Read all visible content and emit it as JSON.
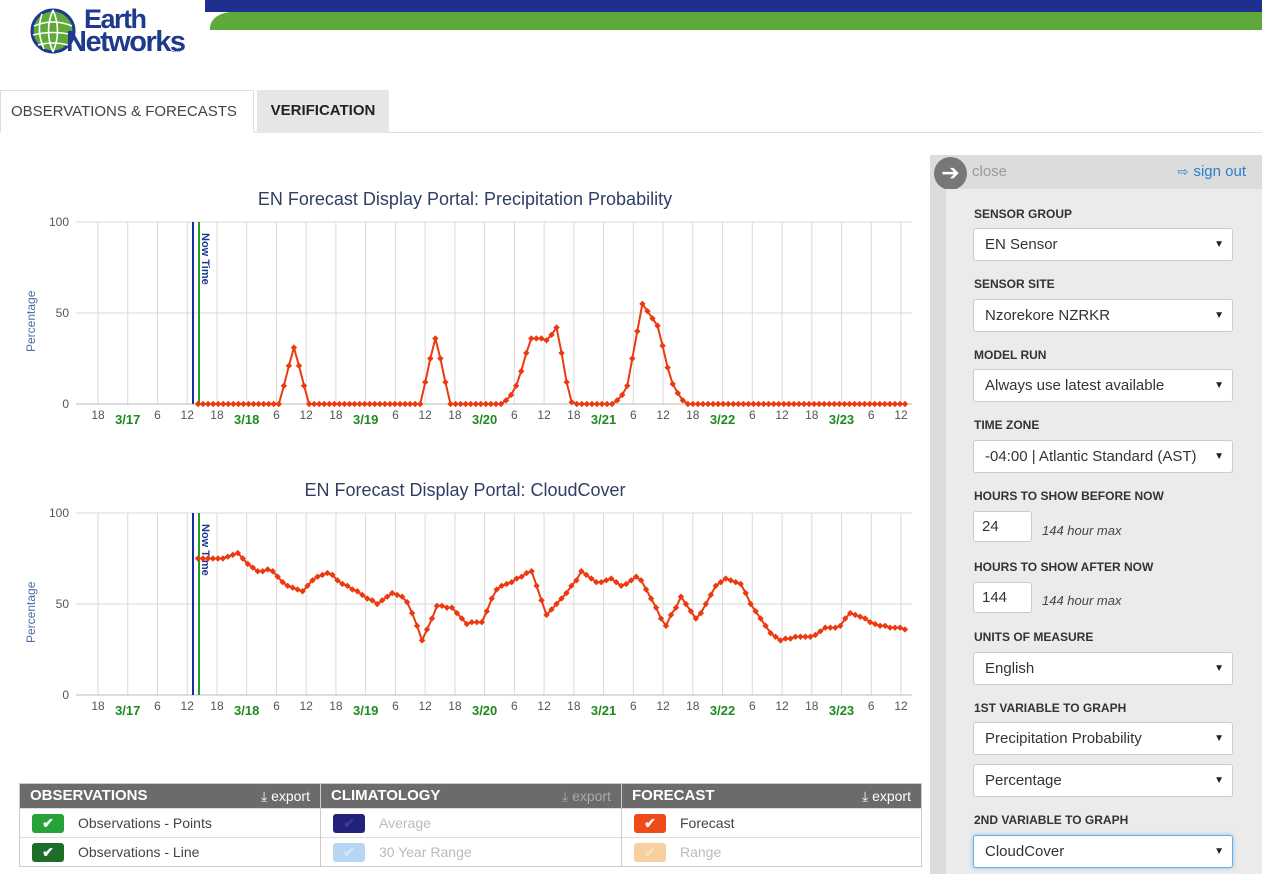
{
  "header": {
    "logo_line1": "Earth",
    "logo_line2": "Networks",
    "logo_tm": "SM"
  },
  "tabs": [
    {
      "label": "OBSERVATIONS & FORECASTS",
      "active": true
    },
    {
      "label": "VERIFICATION",
      "active": false
    }
  ],
  "colors": {
    "series": "#ec3a10",
    "now_blue": "#1a2b9a",
    "now_green": "#2a9a2a",
    "date_green": "#1f8a1f"
  },
  "chart_data": [
    {
      "type": "line",
      "title": "EN Forecast Display Portal: Precipitation Probability",
      "ylabel": "Percentage",
      "ylim": [
        0,
        100
      ],
      "yticks": [
        "0",
        "50",
        "100"
      ],
      "x_tick_labels": [
        "18",
        "3/17",
        "6",
        "12",
        "18",
        "3/18",
        "6",
        "12",
        "18",
        "3/19",
        "6",
        "12",
        "18",
        "3/20",
        "6",
        "12",
        "18",
        "3/21",
        "6",
        "12",
        "18",
        "3/22",
        "6",
        "12",
        "18",
        "3/23",
        "6",
        "12"
      ],
      "marker": "Now Time",
      "series": [
        {
          "values": [
            0,
            0,
            0,
            0,
            0,
            0,
            0,
            0,
            0,
            0,
            0,
            0,
            0,
            0,
            0,
            0,
            0,
            10,
            21,
            31,
            21,
            10,
            0,
            0,
            0,
            0,
            0,
            0,
            0,
            0,
            0,
            0,
            0,
            0,
            0,
            0,
            0,
            0,
            0,
            0,
            0,
            0,
            0,
            0,
            0,
            12,
            25,
            36,
            25,
            12,
            0,
            0,
            0,
            0,
            0,
            0,
            0,
            0,
            0,
            0,
            0,
            2,
            5,
            10,
            18,
            28,
            36,
            36,
            36,
            35,
            38,
            42,
            28,
            12,
            1,
            0,
            0,
            0,
            0,
            0,
            0,
            0,
            0,
            2,
            5,
            10,
            25,
            40,
            55,
            51,
            47,
            43,
            32,
            20,
            11,
            6,
            2,
            0,
            0,
            0,
            0,
            0,
            0,
            0,
            0,
            0,
            0,
            0,
            0,
            0,
            0,
            0,
            0,
            0,
            0,
            0,
            0,
            0,
            0,
            0,
            0,
            0,
            0,
            0,
            0,
            0,
            0,
            0,
            0,
            0,
            0,
            0,
            0,
            0,
            0,
            0,
            0,
            0,
            0,
            0,
            0
          ]
        }
      ]
    },
    {
      "type": "line",
      "title": "EN Forecast Display Portal: CloudCover",
      "ylabel": "Percentage",
      "ylim": [
        0,
        100
      ],
      "yticks": [
        "0",
        "50",
        "100"
      ],
      "x_tick_labels": [
        "18",
        "3/17",
        "6",
        "12",
        "18",
        "3/18",
        "6",
        "12",
        "18",
        "3/19",
        "6",
        "12",
        "18",
        "3/20",
        "6",
        "12",
        "18",
        "3/21",
        "6",
        "12",
        "18",
        "3/22",
        "6",
        "12",
        "18",
        "3/23",
        "6",
        "12"
      ],
      "marker": "Now Time",
      "series": [
        {
          "values": [
            75,
            75,
            75,
            75,
            75,
            75,
            76,
            77,
            78,
            75,
            72,
            70,
            68,
            68,
            69,
            68,
            65,
            62,
            60,
            59,
            58,
            57,
            60,
            63,
            65,
            66,
            67,
            66,
            63,
            61,
            60,
            58,
            57,
            55,
            53,
            52,
            50,
            52,
            54,
            56,
            55,
            54,
            51,
            45,
            38,
            30,
            36,
            42,
            49,
            49,
            48,
            48,
            45,
            42,
            39,
            40,
            40,
            40,
            46,
            53,
            58,
            60,
            61,
            62,
            64,
            65,
            67,
            68,
            60,
            52,
            44,
            47,
            50,
            53,
            56,
            60,
            63,
            68,
            66,
            64,
            62,
            62,
            63,
            64,
            62,
            60,
            61,
            63,
            65,
            63,
            58,
            53,
            48,
            42,
            38,
            44,
            48,
            54,
            50,
            46,
            42,
            45,
            50,
            55,
            60,
            62,
            64,
            63,
            62,
            61,
            56,
            50,
            46,
            42,
            38,
            34,
            32,
            30,
            31,
            31,
            32,
            32,
            32,
            32,
            33,
            35,
            37,
            37,
            37,
            38,
            42,
            45,
            44,
            43,
            42,
            40,
            39,
            38,
            38,
            37,
            37,
            37,
            36
          ]
        }
      ]
    }
  ],
  "legend": {
    "observations": {
      "title": "OBSERVATIONS",
      "export": "export",
      "rows": [
        "Observations - Points",
        "Observations - Line"
      ]
    },
    "climatology": {
      "title": "CLIMATOLOGY",
      "export": "export",
      "rows": [
        "Average",
        "30 Year Range"
      ]
    },
    "forecast": {
      "title": "FORECAST",
      "export": "export",
      "rows": [
        "Forecast",
        "Range"
      ]
    }
  },
  "panel": {
    "close_label": "close",
    "signout_label": "sign out",
    "sensor_group": {
      "label": "SENSOR GROUP",
      "value": "EN Sensor"
    },
    "sensor_site": {
      "label": "SENSOR SITE",
      "value": "Nzorekore NZRKR"
    },
    "model_run": {
      "label": "MODEL RUN",
      "value": "Always use latest available"
    },
    "time_zone": {
      "label": "TIME ZONE",
      "value": "-04:00 | Atlantic Standard (AST)"
    },
    "hours_before": {
      "label": "HOURS TO SHOW BEFORE NOW",
      "value": "24",
      "hint": "144 hour max"
    },
    "hours_after": {
      "label": "HOURS TO SHOW AFTER NOW",
      "value": "144",
      "hint": "144 hour max"
    },
    "units": {
      "label": "UNITS OF MEASURE",
      "value": "English"
    },
    "var1": {
      "label": "1ST VARIABLE TO GRAPH",
      "value": "Precipitation Probability",
      "unit": "Percentage"
    },
    "var2": {
      "label": "2ND VARIABLE TO GRAPH",
      "value": "CloudCover"
    }
  }
}
